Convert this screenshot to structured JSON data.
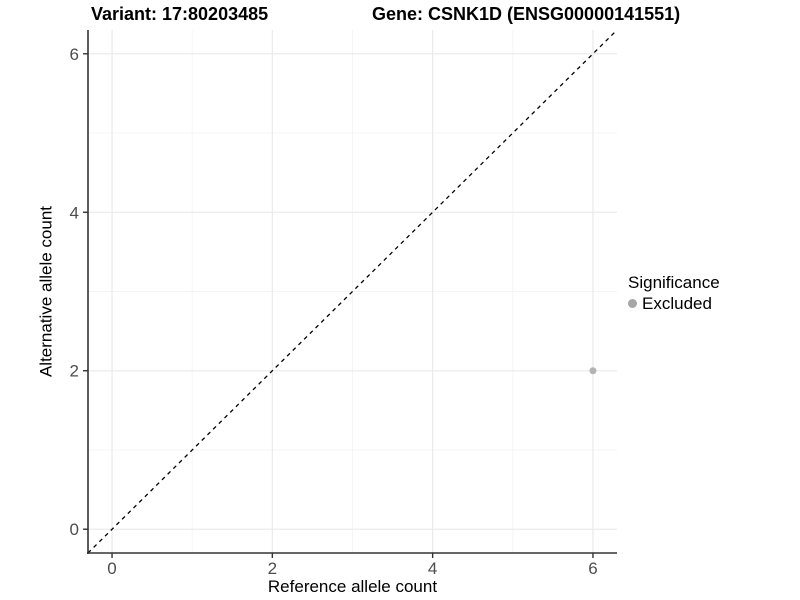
{
  "titles": {
    "variant": "Variant: 17:80203485",
    "gene": "Gene: CSNK1D (ENSG00000141551)"
  },
  "chart_data": {
    "type": "scatter",
    "xlabel": "Reference allele count",
    "ylabel": "Alternative allele count",
    "xlim": [
      -0.3,
      6.3
    ],
    "ylim": [
      -0.3,
      6.3
    ],
    "xticks": [
      0,
      2,
      4,
      6
    ],
    "yticks": [
      0,
      2,
      4,
      6
    ],
    "x_minor_ticks": [
      1,
      3,
      5
    ],
    "y_minor_ticks": [
      1,
      3,
      5
    ],
    "grid": true,
    "points": [
      {
        "x": 6,
        "y": 2,
        "series": "Excluded"
      }
    ],
    "identity_line": {
      "style": "dashed",
      "from": [
        -0.3,
        -0.3
      ],
      "to": [
        6.3,
        6.3
      ]
    },
    "legend": {
      "title": "Significance",
      "position": "right",
      "items": [
        {
          "label": "Excluded",
          "color": "#a6a6a6"
        }
      ]
    },
    "colors": {
      "point": "#b3b3b3",
      "grid_major": "#ebebeb",
      "grid_minor": "#f5f5f5",
      "axis_line": "#333333",
      "tick_label": "#4d4d4d",
      "dashed_line": "#000000"
    }
  }
}
